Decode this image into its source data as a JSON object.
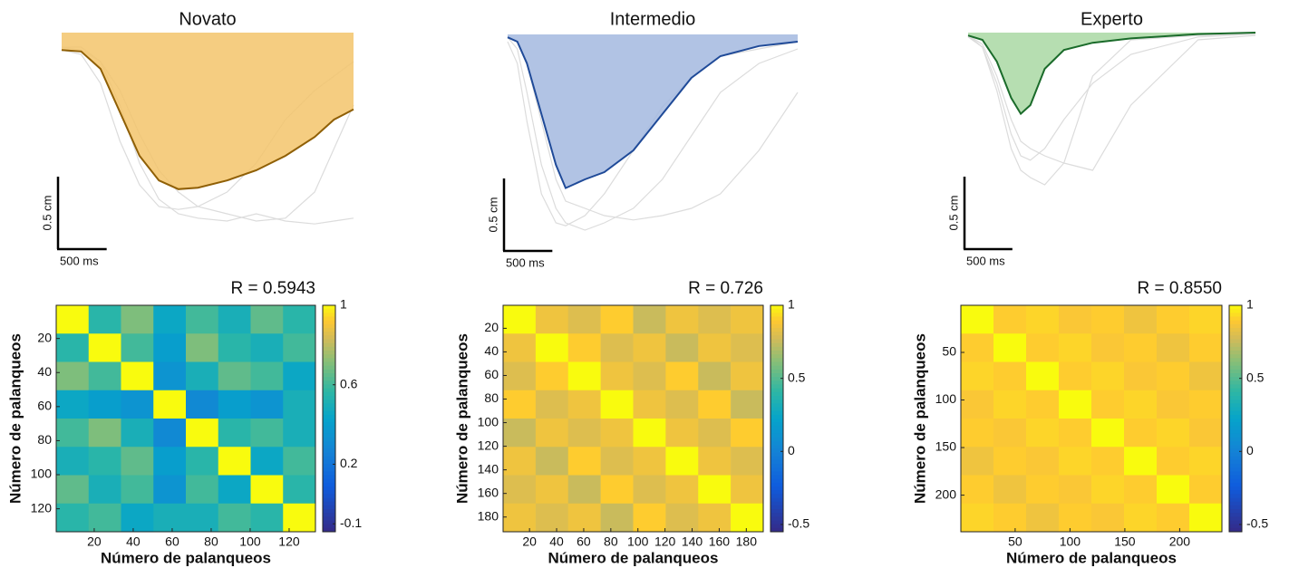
{
  "chart_data": [
    {
      "type": "trajectory",
      "title": "Novato",
      "xlim": [
        0,
        3000
      ],
      "ylim": [
        -1.4,
        0
      ],
      "x": [
        0,
        200,
        400,
        600,
        800,
        1000,
        1200,
        1400,
        1700,
        2000,
        2300,
        2600,
        2800,
        3000
      ],
      "traces": [
        [
          -0.1,
          -0.1,
          -0.2,
          -0.5,
          -0.9,
          -1.15,
          -1.25,
          -1.28,
          -1.3,
          -1.25,
          -1.3,
          -1.32,
          -1.3,
          -1.28
        ],
        [
          -0.12,
          -0.15,
          -0.35,
          -0.75,
          -1.05,
          -1.2,
          -1.22,
          -1.2,
          -1.1,
          -0.9,
          -0.6,
          -0.4,
          -0.3,
          -0.2
        ],
        [
          -0.1,
          -0.12,
          -0.2,
          -0.4,
          -0.7,
          -0.95,
          -1.1,
          -1.2,
          -1.25,
          -1.3,
          -1.28,
          -1.1,
          -0.8,
          -0.5
        ]
      ],
      "series": [
        {
          "color": "#8f5f05",
          "fill": "#f3c46b",
          "values": [
            -0.12,
            -0.13,
            -0.25,
            -0.55,
            -0.85,
            -1.02,
            -1.08,
            -1.07,
            -1.02,
            -0.95,
            -0.85,
            -0.72,
            -0.6,
            -0.53
          ]
        }
      ],
      "scale_bar": {
        "x": {
          "value": 500,
          "label": "500 ms"
        },
        "y": {
          "value": 0.5,
          "label": "0.5 cm"
        }
      }
    },
    {
      "type": "trajectory",
      "title": "Intermedio",
      "xlim": [
        0,
        3000
      ],
      "ylim": [
        -1.4,
        0
      ],
      "x": [
        0,
        100,
        200,
        350,
        500,
        600,
        800,
        1000,
        1300,
        1600,
        1900,
        2200,
        2600,
        3000
      ],
      "traces": [
        [
          -0.02,
          -0.1,
          -0.4,
          -0.9,
          -1.2,
          -1.3,
          -1.35,
          -1.3,
          -1.2,
          -1.0,
          -0.7,
          -0.4,
          -0.2,
          -0.1
        ],
        [
          -0.02,
          -0.05,
          -0.2,
          -0.6,
          -1.0,
          -1.15,
          -1.2,
          -1.25,
          -1.28,
          -1.25,
          -1.2,
          -1.1,
          -0.8,
          -0.4
        ],
        [
          -0.05,
          -0.2,
          -0.6,
          -1.1,
          -1.3,
          -1.32,
          -1.25,
          -1.1,
          -0.8,
          -0.5,
          -0.3,
          -0.15,
          -0.1,
          -0.05
        ]
      ],
      "series": [
        {
          "color": "#1f4a98",
          "fill": "#a3b9df",
          "values": [
            -0.02,
            -0.05,
            -0.2,
            -0.55,
            -0.9,
            -1.06,
            -1.0,
            -0.95,
            -0.8,
            -0.55,
            -0.3,
            -0.15,
            -0.08,
            -0.05
          ]
        }
      ],
      "scale_bar": {
        "x": {
          "value": 500,
          "label": "500 ms"
        },
        "y": {
          "value": 0.5,
          "label": "0.5 cm"
        }
      }
    },
    {
      "type": "trajectory",
      "title": "Experto",
      "xlim": [
        0,
        3000
      ],
      "ylim": [
        -1.4,
        0
      ],
      "x": [
        0,
        150,
        300,
        450,
        550,
        650,
        800,
        1000,
        1300,
        1700,
        2400,
        3000
      ],
      "traces": [
        [
          -0.02,
          -0.1,
          -0.4,
          -0.8,
          -0.95,
          -1.0,
          -1.05,
          -0.9,
          -0.3,
          -0.05,
          -0.02,
          -0.01
        ],
        [
          -0.02,
          -0.08,
          -0.3,
          -0.6,
          -0.75,
          -0.8,
          -0.85,
          -0.9,
          -0.95,
          -0.5,
          -0.05,
          -0.02
        ],
        [
          -0.03,
          -0.1,
          -0.35,
          -0.7,
          -0.85,
          -0.88,
          -0.8,
          -0.6,
          -0.35,
          -0.15,
          -0.03,
          -0.01
        ]
      ],
      "series": [
        {
          "color": "#1a6b2a",
          "fill": "#a9d8a3",
          "values": [
            -0.02,
            -0.05,
            -0.2,
            -0.45,
            -0.56,
            -0.5,
            -0.25,
            -0.12,
            -0.07,
            -0.04,
            -0.01,
            0
          ]
        }
      ],
      "scale_bar": {
        "x": {
          "value": 500,
          "label": "500 ms"
        },
        "y": {
          "value": 0.5,
          "label": "0.5 cm"
        }
      }
    },
    {
      "type": "heatmap",
      "title": "R = 0.5943",
      "xlabel": "Número de palanqueos",
      "ylabel": "Número de palanqueos",
      "xlim": [
        0.5,
        133.5
      ],
      "ylim": [
        0.5,
        133.5
      ],
      "yreverse": true,
      "colormap": "parula",
      "xticks": [
        20,
        40,
        60,
        80,
        100,
        120
      ],
      "yticks": [
        20,
        40,
        60,
        80,
        100,
        120
      ],
      "clim": [
        -0.14,
        1
      ],
      "cticks": [
        -0.1,
        0.2,
        0.6,
        1
      ],
      "values": [
        [
          1,
          0.55,
          0.7,
          0.45,
          0.6,
          0.5,
          0.65,
          0.55
        ],
        [
          0.55,
          1,
          0.6,
          0.4,
          0.7,
          0.55,
          0.5,
          0.6
        ],
        [
          0.7,
          0.6,
          1,
          0.35,
          0.5,
          0.65,
          0.6,
          0.45
        ],
        [
          0.45,
          0.4,
          0.35,
          1,
          0.3,
          0.4,
          0.35,
          0.5
        ],
        [
          0.6,
          0.7,
          0.5,
          0.3,
          1,
          0.55,
          0.6,
          0.5
        ],
        [
          0.5,
          0.55,
          0.65,
          0.4,
          0.55,
          1,
          0.45,
          0.6
        ],
        [
          0.65,
          0.5,
          0.6,
          0.35,
          0.6,
          0.45,
          1,
          0.55
        ],
        [
          0.55,
          0.6,
          0.45,
          0.5,
          0.5,
          0.6,
          0.55,
          1
        ]
      ]
    },
    {
      "type": "heatmap",
      "title": "R = 0.726",
      "xlabel": "Número de palanqueos",
      "ylabel": "Número de palanqueos",
      "xlim": [
        0.5,
        192.5
      ],
      "ylim": [
        0.5,
        192.5
      ],
      "yreverse": true,
      "colormap": "parula",
      "xticks": [
        20,
        40,
        60,
        80,
        100,
        120,
        140,
        160,
        180
      ],
      "yticks": [
        20,
        40,
        60,
        80,
        100,
        120,
        140,
        160,
        180
      ],
      "clim": [
        -0.55,
        1
      ],
      "cticks": [
        -0.5,
        0,
        0.5,
        1
      ],
      "values": [
        [
          1,
          0.85,
          0.8,
          0.9,
          0.75,
          0.85,
          0.8,
          0.85
        ],
        [
          0.85,
          1,
          0.9,
          0.8,
          0.85,
          0.75,
          0.85,
          0.8
        ],
        [
          0.8,
          0.9,
          1,
          0.85,
          0.8,
          0.9,
          0.75,
          0.85
        ],
        [
          0.9,
          0.8,
          0.85,
          1,
          0.85,
          0.8,
          0.9,
          0.75
        ],
        [
          0.75,
          0.85,
          0.8,
          0.85,
          1,
          0.85,
          0.8,
          0.9
        ],
        [
          0.85,
          0.75,
          0.9,
          0.8,
          0.85,
          1,
          0.85,
          0.8
        ],
        [
          0.8,
          0.85,
          0.75,
          0.9,
          0.8,
          0.85,
          1,
          0.85
        ],
        [
          0.85,
          0.8,
          0.85,
          0.75,
          0.9,
          0.8,
          0.85,
          1
        ]
      ]
    },
    {
      "type": "heatmap",
      "title": "R = 0.8550",
      "xlabel": "Número de palanqueos",
      "ylabel": "Número de palanqueos",
      "xlim": [
        0.5,
        238.5
      ],
      "ylim": [
        0.5,
        238.5
      ],
      "yreverse": true,
      "colormap": "parula",
      "xticks": [
        50,
        100,
        150,
        200
      ],
      "yticks": [
        50,
        100,
        150,
        200
      ],
      "clim": [
        -0.55,
        1
      ],
      "cticks": [
        -0.5,
        0,
        0.5,
        1
      ],
      "values": [
        [
          1,
          0.9,
          0.92,
          0.88,
          0.9,
          0.85,
          0.9,
          0.92
        ],
        [
          0.9,
          1,
          0.9,
          0.92,
          0.88,
          0.9,
          0.85,
          0.9
        ],
        [
          0.92,
          0.9,
          1,
          0.9,
          0.92,
          0.88,
          0.9,
          0.85
        ],
        [
          0.88,
          0.92,
          0.9,
          1,
          0.9,
          0.92,
          0.88,
          0.9
        ],
        [
          0.9,
          0.88,
          0.92,
          0.9,
          1,
          0.9,
          0.92,
          0.88
        ],
        [
          0.85,
          0.9,
          0.88,
          0.92,
          0.9,
          1,
          0.9,
          0.92
        ],
        [
          0.9,
          0.85,
          0.9,
          0.88,
          0.92,
          0.9,
          1,
          0.9
        ],
        [
          0.92,
          0.9,
          0.85,
          0.9,
          0.88,
          0.92,
          0.9,
          1
        ]
      ]
    }
  ]
}
